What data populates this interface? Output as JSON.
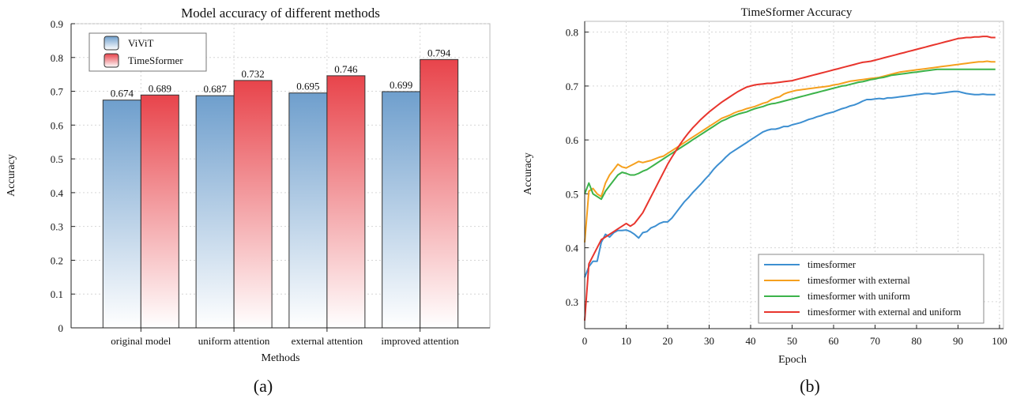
{
  "chart_data": [
    {
      "type": "bar",
      "title": "Model accuracy of different methods",
      "xlabel": "Methods",
      "ylabel": "Accuracy",
      "ylim": [
        0,
        0.9
      ],
      "yticks": [
        "0",
        "0.1",
        "0.2",
        "0.3",
        "0.4",
        "0.5",
        "0.6",
        "0.7",
        "0.8",
        "0.9"
      ],
      "categories": [
        "original model",
        "uniform attention",
        "external attention",
        "improved attention"
      ],
      "series": [
        {
          "name": "ViViT",
          "values": [
            0.674,
            0.687,
            0.695,
            0.699
          ],
          "labels": [
            "0.674",
            "0.687",
            "0.695",
            "0.699"
          ],
          "color": "#6f9fcd"
        },
        {
          "name": "TimeSformer",
          "values": [
            0.689,
            0.732,
            0.746,
            0.794
          ],
          "labels": [
            "0.689",
            "0.732",
            "0.746",
            "0.794"
          ],
          "color": "#e8444b"
        }
      ],
      "legend_position": "top-left",
      "grid": true,
      "panel_label": "(a)"
    },
    {
      "type": "line",
      "title": "TimeSformer Accuracy",
      "xlabel": "Epoch",
      "ylabel": "Accuracy",
      "xlim": [
        0,
        100
      ],
      "ylim": [
        0.25,
        0.82
      ],
      "xticks": [
        "0",
        "10",
        "20",
        "30",
        "40",
        "50",
        "60",
        "70",
        "80",
        "90",
        "100"
      ],
      "yticks": [
        "0.3",
        "0.4",
        "0.5",
        "0.6",
        "0.7",
        "0.8"
      ],
      "x_start": 0,
      "x_step": 1,
      "series": [
        {
          "name": "timesformer",
          "color": "#3d8fd1",
          "values": [
            0.345,
            0.365,
            0.375,
            0.375,
            0.41,
            0.425,
            0.42,
            0.428,
            0.432,
            0.432,
            0.433,
            0.43,
            0.425,
            0.418,
            0.428,
            0.43,
            0.437,
            0.44,
            0.445,
            0.448,
            0.448,
            0.455,
            0.465,
            0.475,
            0.485,
            0.493,
            0.502,
            0.51,
            0.518,
            0.527,
            0.535,
            0.545,
            0.553,
            0.56,
            0.568,
            0.575,
            0.58,
            0.585,
            0.59,
            0.595,
            0.6,
            0.605,
            0.61,
            0.615,
            0.618,
            0.62,
            0.62,
            0.622,
            0.625,
            0.625,
            0.628,
            0.63,
            0.632,
            0.635,
            0.638,
            0.64,
            0.643,
            0.645,
            0.648,
            0.65,
            0.652,
            0.655,
            0.658,
            0.66,
            0.663,
            0.665,
            0.668,
            0.672,
            0.675,
            0.675,
            0.676,
            0.677,
            0.676,
            0.678,
            0.678,
            0.679,
            0.68,
            0.681,
            0.682,
            0.683,
            0.684,
            0.685,
            0.686,
            0.686,
            0.685,
            0.686,
            0.687,
            0.688,
            0.689,
            0.69,
            0.69,
            0.688,
            0.686,
            0.685,
            0.684,
            0.684,
            0.685,
            0.684,
            0.684,
            0.684
          ]
        },
        {
          "name": "timesformer with external",
          "color": "#f5a01e",
          "values": [
            0.41,
            0.505,
            0.51,
            0.5,
            0.495,
            0.52,
            0.535,
            0.545,
            0.555,
            0.55,
            0.548,
            0.552,
            0.556,
            0.56,
            0.558,
            0.56,
            0.562,
            0.565,
            0.568,
            0.57,
            0.575,
            0.58,
            0.585,
            0.59,
            0.595,
            0.6,
            0.605,
            0.61,
            0.615,
            0.62,
            0.625,
            0.63,
            0.635,
            0.64,
            0.643,
            0.646,
            0.65,
            0.653,
            0.655,
            0.658,
            0.66,
            0.662,
            0.665,
            0.668,
            0.67,
            0.675,
            0.678,
            0.68,
            0.685,
            0.688,
            0.69,
            0.692,
            0.693,
            0.694,
            0.695,
            0.696,
            0.697,
            0.698,
            0.699,
            0.7,
            0.702,
            0.703,
            0.705,
            0.707,
            0.709,
            0.71,
            0.711,
            0.712,
            0.713,
            0.714,
            0.715,
            0.716,
            0.718,
            0.72,
            0.722,
            0.724,
            0.726,
            0.727,
            0.728,
            0.729,
            0.73,
            0.731,
            0.732,
            0.733,
            0.734,
            0.735,
            0.736,
            0.737,
            0.738,
            0.739,
            0.74,
            0.741,
            0.742,
            0.743,
            0.744,
            0.745,
            0.745,
            0.746,
            0.745,
            0.745
          ]
        },
        {
          "name": "timesformer with uniform",
          "color": "#3cb34a",
          "values": [
            0.5,
            0.52,
            0.5,
            0.495,
            0.49,
            0.505,
            0.515,
            0.525,
            0.535,
            0.54,
            0.538,
            0.535,
            0.535,
            0.538,
            0.542,
            0.545,
            0.55,
            0.555,
            0.56,
            0.565,
            0.57,
            0.575,
            0.58,
            0.585,
            0.59,
            0.595,
            0.6,
            0.605,
            0.61,
            0.615,
            0.62,
            0.625,
            0.63,
            0.635,
            0.638,
            0.642,
            0.645,
            0.648,
            0.65,
            0.652,
            0.655,
            0.658,
            0.66,
            0.662,
            0.665,
            0.667,
            0.668,
            0.67,
            0.672,
            0.674,
            0.676,
            0.678,
            0.68,
            0.682,
            0.684,
            0.686,
            0.688,
            0.69,
            0.692,
            0.694,
            0.696,
            0.698,
            0.7,
            0.701,
            0.703,
            0.705,
            0.707,
            0.708,
            0.71,
            0.712,
            0.713,
            0.715,
            0.716,
            0.718,
            0.72,
            0.721,
            0.722,
            0.723,
            0.724,
            0.725,
            0.726,
            0.727,
            0.728,
            0.729,
            0.73,
            0.731,
            0.731,
            0.731,
            0.731,
            0.731,
            0.731,
            0.731,
            0.731,
            0.731,
            0.731,
            0.731,
            0.731,
            0.731,
            0.731,
            0.731
          ]
        },
        {
          "name": "timesformer with external and uniform",
          "color": "#e8352d",
          "values": [
            0.265,
            0.37,
            0.385,
            0.4,
            0.415,
            0.42,
            0.425,
            0.43,
            0.435,
            0.44,
            0.445,
            0.44,
            0.445,
            0.455,
            0.465,
            0.48,
            0.495,
            0.51,
            0.525,
            0.54,
            0.555,
            0.568,
            0.58,
            0.592,
            0.603,
            0.613,
            0.622,
            0.63,
            0.638,
            0.645,
            0.652,
            0.658,
            0.664,
            0.67,
            0.675,
            0.68,
            0.685,
            0.69,
            0.694,
            0.698,
            0.7,
            0.702,
            0.703,
            0.704,
            0.705,
            0.705,
            0.706,
            0.707,
            0.708,
            0.709,
            0.71,
            0.712,
            0.714,
            0.716,
            0.718,
            0.72,
            0.722,
            0.724,
            0.726,
            0.728,
            0.73,
            0.732,
            0.734,
            0.736,
            0.738,
            0.74,
            0.742,
            0.744,
            0.745,
            0.746,
            0.748,
            0.75,
            0.752,
            0.754,
            0.756,
            0.758,
            0.76,
            0.762,
            0.764,
            0.766,
            0.768,
            0.77,
            0.772,
            0.774,
            0.776,
            0.778,
            0.78,
            0.782,
            0.784,
            0.786,
            0.788,
            0.789,
            0.79,
            0.79,
            0.791,
            0.791,
            0.792,
            0.792,
            0.79,
            0.79
          ]
        }
      ],
      "legend_position": "bottom-right",
      "grid": true,
      "panel_label": "(b)"
    }
  ]
}
